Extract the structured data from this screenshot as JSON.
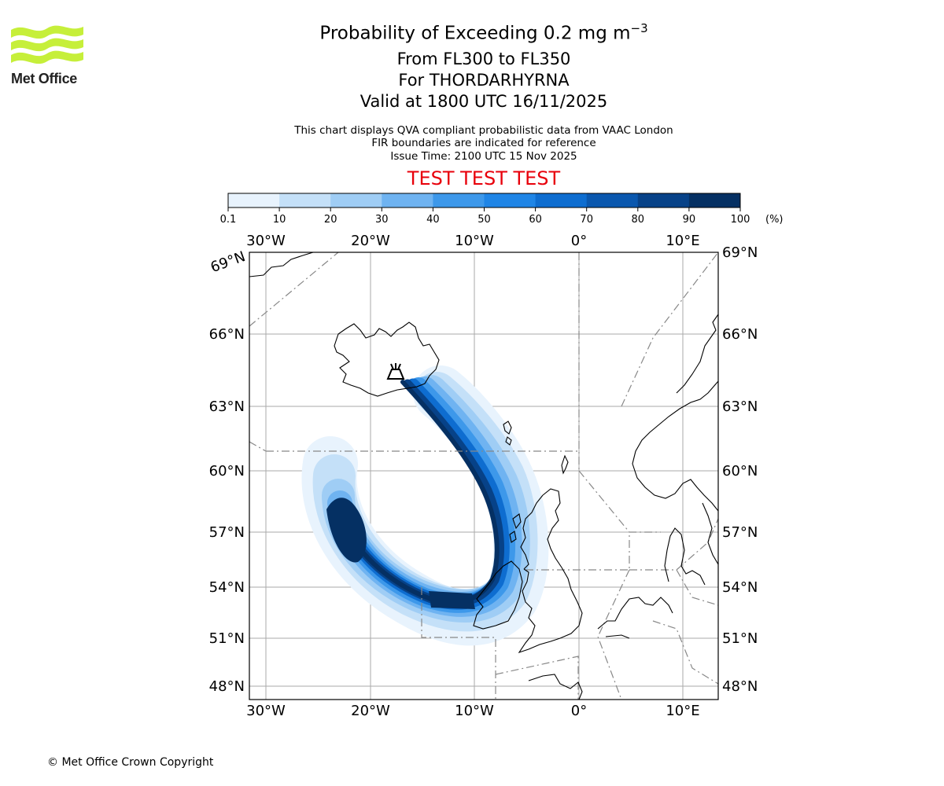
{
  "logo": {
    "name": "Met Office",
    "color": "#c6ef3a"
  },
  "title": {
    "line1_main": "Probability of Exceeding 0.2 mg m",
    "line1_sup": "−3",
    "line2": "From FL300 to FL350",
    "line3": "For THORDARHYRNA",
    "line4": "Valid at 1800 UTC 16/11/2025"
  },
  "subtitle": {
    "line1": "This chart displays QVA compliant probabilistic data from VAAC London",
    "line2": "FIR boundaries are indicated for reference",
    "line3": "Issue Time: 2100 UTC 15 Nov 2025"
  },
  "test_banner": "TEST TEST TEST",
  "colorbar": {
    "ticks": [
      "0.1",
      "10",
      "20",
      "30",
      "40",
      "50",
      "60",
      "70",
      "80",
      "90",
      "100"
    ],
    "unit": "(%)",
    "colors": [
      "#e8f3fd",
      "#c4e0f8",
      "#9fcdf5",
      "#6fb3f1",
      "#3d98ea",
      "#1f85e6",
      "#0e6dd0",
      "#0a57ae",
      "#074288",
      "#053063"
    ]
  },
  "map": {
    "lon_labels": [
      "30°W",
      "20°W",
      "10°W",
      "0°",
      "10°E"
    ],
    "lat_labels": [
      "69°N",
      "66°N",
      "63°N",
      "60°N",
      "57°N",
      "54°N",
      "51°N",
      "48°N"
    ],
    "volcano_icon": "volcano-icon"
  },
  "chart_data": {
    "type": "heatmap",
    "title": "Probability of Exceeding 0.2 mg m−3",
    "variable": "Probability of exceeding 0.2 mg m−3",
    "units": "%",
    "levels": [
      0.1,
      10,
      20,
      30,
      40,
      50,
      60,
      70,
      80,
      90,
      100
    ],
    "lon_range": [
      -31.6,
      13.4
    ],
    "lat_range": [
      47.5,
      69.5
    ],
    "lon_ticks": [
      -30,
      -20,
      -10,
      0,
      10
    ],
    "lat_ticks": [
      69,
      66,
      63,
      60,
      57,
      54,
      51,
      48
    ],
    "volcano": "THORDARHYRNA",
    "flight_levels": "FL300 to FL350"
  },
  "footer": {
    "copyright": "© Met Office Crown Copyright"
  }
}
